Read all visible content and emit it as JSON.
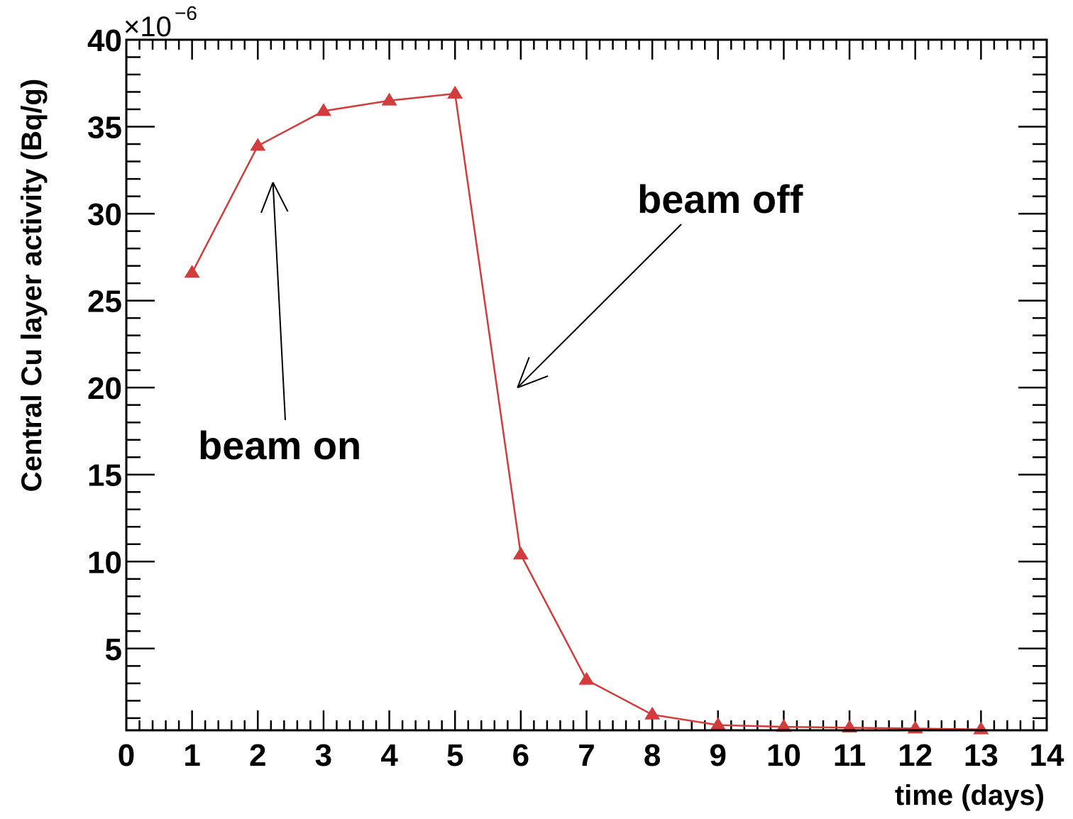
{
  "chart_data": {
    "type": "line",
    "xlabel": "time (days)",
    "ylabel": "Central Cu layer activity (Bq/g)",
    "y_multiplier": {
      "base": "×10",
      "exponent": "−6"
    },
    "xlim": [
      0,
      14
    ],
    "ylim": [
      0.3,
      40
    ],
    "x_ticks": [
      "0",
      "1",
      "2",
      "3",
      "4",
      "5",
      "6",
      "7",
      "8",
      "9",
      "10",
      "11",
      "12",
      "13",
      "14"
    ],
    "y_ticks": [
      "5",
      "10",
      "15",
      "20",
      "25",
      "30",
      "35",
      "40"
    ],
    "grid": false,
    "legend": "none",
    "series": [
      {
        "color": "#d23c3c",
        "marker": "triangle",
        "x": [
          1,
          2,
          3,
          4,
          5,
          6,
          7,
          8,
          9,
          10,
          11,
          12,
          13
        ],
        "y": [
          26.6,
          33.9,
          35.9,
          36.5,
          36.9,
          10.4,
          3.2,
          1.2,
          0.6,
          0.5,
          0.45,
          0.4,
          0.35
        ]
      }
    ],
    "annotations": [
      {
        "text": "beam on",
        "points_to": {
          "x": 2.23,
          "y": 31.8
        }
      },
      {
        "text": "beam off",
        "points_to": {
          "x": 5.95,
          "y": 20.0
        }
      }
    ]
  }
}
